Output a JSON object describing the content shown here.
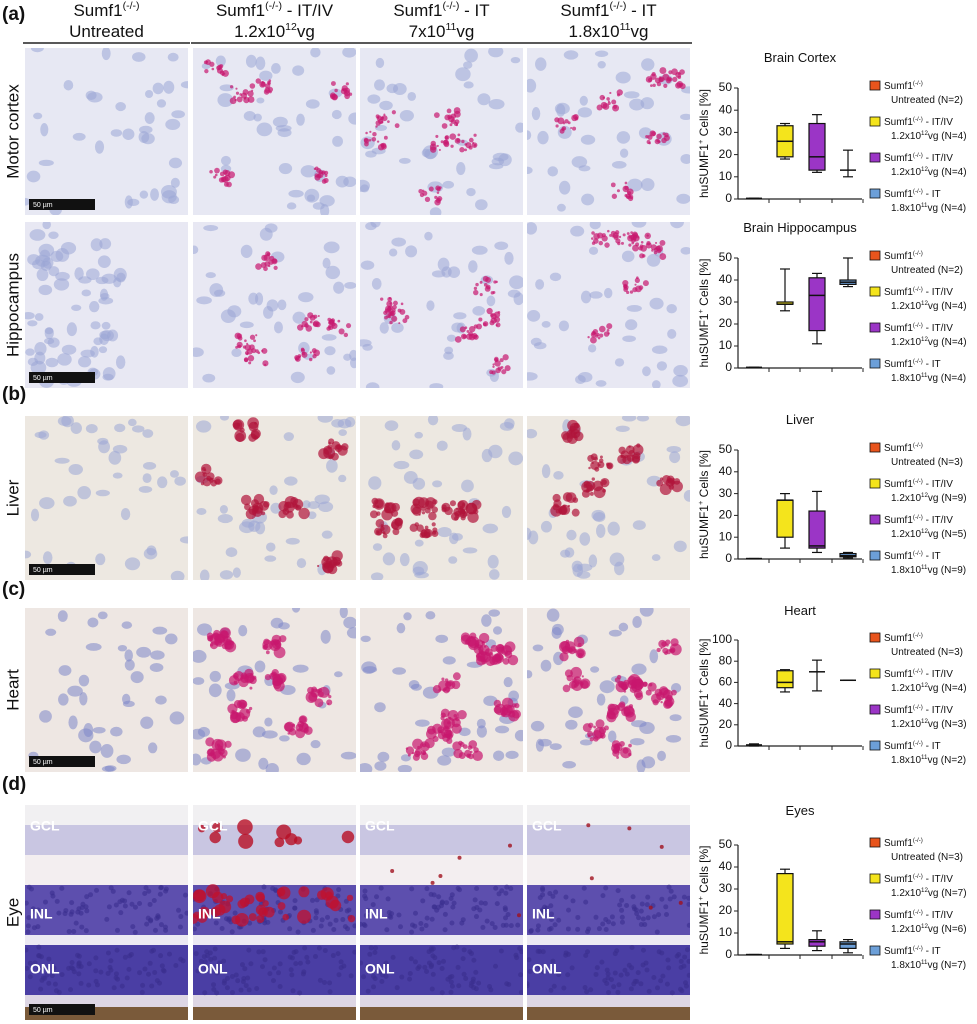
{
  "panels": [
    "(a)",
    "(b)",
    "(c)",
    "(d)"
  ],
  "columns": [
    {
      "title": [
        "Sumf1",
        "(-/-)"
      ],
      "subtitle": [
        "Untreated"
      ]
    },
    {
      "title": [
        "Sumf1",
        "(-/-)",
        " - IT/IV"
      ],
      "subtitle": [
        "1.2x10",
        "12",
        "vg"
      ]
    },
    {
      "title": [
        "Sumf1",
        "(-/-)",
        " - IT"
      ],
      "subtitle": [
        "7x10",
        "11",
        "vg"
      ]
    },
    {
      "title": [
        "Sumf1",
        "(-/-)",
        " - IT"
      ],
      "subtitle": [
        "1.8x10",
        "11",
        "vg"
      ]
    }
  ],
  "rows": [
    "Motor cortex",
    "Hippocampus",
    "Liver",
    "Heart",
    "Eye"
  ],
  "scale_bar": "50 µm",
  "eye_layers": [
    "GCL",
    "INL",
    "ONL"
  ],
  "chart_data": [
    {
      "type": "box",
      "title": "Brain Cortex",
      "y_label": [
        "huSUMF1",
        "+",
        " Cells [%]"
      ],
      "ylim": [
        0,
        50
      ],
      "yticks": [
        0,
        10,
        20,
        30,
        40,
        50
      ],
      "series": [
        {
          "name": [
            "Sumf1",
            "(-/-)"
          ],
          "detail": [
            "Untreated (N=2)"
          ],
          "color": "#e8541c",
          "min": 0.3,
          "q1": 0.3,
          "median": 0.3,
          "q3": 0.3,
          "max": 0.3
        },
        {
          "name": [
            "Sumf1",
            "(-/-)",
            " - IT/IV"
          ],
          "detail": [
            "1.2x10",
            "12",
            "vg (N=4)"
          ],
          "color": "#f4e41c",
          "min": 18,
          "q1": 19,
          "median": 26,
          "q3": 33,
          "max": 34
        },
        {
          "name": [
            "Sumf1",
            "(-/-)",
            " - IT/IV"
          ],
          "detail": [
            "1.2x10",
            "12",
            "vg (N=4)"
          ],
          "color": "#9b35c6",
          "min": 12,
          "q1": 13,
          "median": 19,
          "q3": 34,
          "max": 38
        },
        {
          "name": [
            "Sumf1",
            "(-/-)",
            " - IT"
          ],
          "detail": [
            "1.8x10",
            "11",
            "vg (N=4)"
          ],
          "color": "#6c9fd8",
          "min": 10,
          "q1": 13,
          "median": 13,
          "q3": 13,
          "max": 22
        }
      ]
    },
    {
      "type": "box",
      "title": "Brain Hippocampus",
      "y_label": [
        "huSUMF1",
        "+",
        " Cells [%]"
      ],
      "ylim": [
        0,
        50
      ],
      "yticks": [
        0,
        10,
        20,
        30,
        40,
        50
      ],
      "series": [
        {
          "name": [
            "Sumf1",
            "(-/-)"
          ],
          "detail": [
            "Untreated (N=2)"
          ],
          "color": "#e8541c",
          "min": 0.3,
          "q1": 0.3,
          "median": 0.3,
          "q3": 0.3,
          "max": 0.3
        },
        {
          "name": [
            "Sumf1",
            "(-/-)",
            " - IT/IV"
          ],
          "detail": [
            "1.2x10",
            "12",
            "vg (N=4)"
          ],
          "color": "#f4e41c",
          "min": 26,
          "q1": 29,
          "median": 29,
          "q3": 30,
          "max": 45
        },
        {
          "name": [
            "Sumf1",
            "(-/-)",
            " - IT/IV"
          ],
          "detail": [
            "1.2x10",
            "12",
            "vg (N=4)"
          ],
          "color": "#9b35c6",
          "min": 11,
          "q1": 17,
          "median": 33,
          "q3": 41,
          "max": 43
        },
        {
          "name": [
            "Sumf1",
            "(-/-)",
            " - IT"
          ],
          "detail": [
            "1.8x10",
            "11",
            "vg (N=4)"
          ],
          "color": "#6c9fd8",
          "min": 37,
          "q1": 38,
          "median": 39,
          "q3": 40,
          "max": 50
        }
      ]
    },
    {
      "type": "box",
      "title": "Liver",
      "y_label": [
        "huSUMF1",
        "+",
        " Cells [%]"
      ],
      "ylim": [
        0,
        50
      ],
      "yticks": [
        0,
        10,
        20,
        30,
        40,
        50
      ],
      "series": [
        {
          "name": [
            "Sumf1",
            "(-/-)"
          ],
          "detail": [
            "Untreated (N=3)"
          ],
          "color": "#e8541c",
          "min": 0.2,
          "q1": 0.2,
          "median": 0.2,
          "q3": 0.2,
          "max": 0.2
        },
        {
          "name": [
            "Sumf1",
            "(-/-)",
            " - IT/IV"
          ],
          "detail": [
            "1.2x10",
            "12",
            "vg (N=9)"
          ],
          "color": "#f4e41c",
          "min": 5,
          "q1": 10,
          "median": 27,
          "q3": 27,
          "max": 30
        },
        {
          "name": [
            "Sumf1",
            "(-/-)",
            " - IT/IV"
          ],
          "detail": [
            "1.2x10",
            "12",
            "vg (N=5)"
          ],
          "color": "#9b35c6",
          "min": 3,
          "q1": 5,
          "median": 6,
          "q3": 22,
          "max": 31
        },
        {
          "name": [
            "Sumf1",
            "(-/-)",
            " - IT"
          ],
          "detail": [
            "1.8x10",
            "11",
            "vg (N=9)"
          ],
          "color": "#6c9fd8",
          "min": 0.5,
          "q1": 1,
          "median": 1.5,
          "q3": 2.5,
          "max": 3
        }
      ]
    },
    {
      "type": "box",
      "title": "Heart",
      "y_label": [
        "huSUMF1",
        "+",
        " Cells [%]"
      ],
      "ylim": [
        0,
        100
      ],
      "yticks": [
        0,
        20,
        40,
        60,
        80,
        100
      ],
      "series": [
        {
          "name": [
            "Sumf1",
            "(-/-)"
          ],
          "detail": [
            "Untreated (N=3)"
          ],
          "color": "#e8541c",
          "min": 0,
          "q1": 1,
          "median": 1,
          "q3": 1,
          "max": 2
        },
        {
          "name": [
            "Sumf1",
            "(-/-)",
            " - IT/IV"
          ],
          "detail": [
            "1.2x10",
            "12",
            "vg (N=4)"
          ],
          "color": "#f4e41c",
          "min": 51,
          "q1": 55,
          "median": 60,
          "q3": 71,
          "max": 72
        },
        {
          "name": [
            "Sumf1",
            "(-/-)",
            " - IT/IV"
          ],
          "detail": [
            "1.2x10",
            "12",
            "vg (N=3)"
          ],
          "color": "#9b35c6",
          "min": 52,
          "q1": 70,
          "median": 70,
          "q3": 70,
          "max": 81
        },
        {
          "name": [
            "Sumf1",
            "(-/-)",
            " - IT"
          ],
          "detail": [
            "1.8x10",
            "11",
            "vg (N=2)"
          ],
          "color": "#6c9fd8",
          "min": 62,
          "q1": 62,
          "median": 62,
          "q3": 62,
          "max": 62
        }
      ]
    },
    {
      "type": "box",
      "title": "Eyes",
      "y_label": [
        "huSUMF1",
        "+",
        " Cells [%]"
      ],
      "ylim": [
        0,
        50
      ],
      "yticks": [
        0,
        10,
        20,
        30,
        40,
        50
      ],
      "series": [
        {
          "name": [
            "Sumf1",
            "(-/-)"
          ],
          "detail": [
            "Untreated (N=3)"
          ],
          "color": "#e8541c",
          "min": 0.2,
          "q1": 0.2,
          "median": 0.2,
          "q3": 0.2,
          "max": 0.2
        },
        {
          "name": [
            "Sumf1",
            "(-/-)",
            " - IT/IV"
          ],
          "detail": [
            "1.2x10",
            "12",
            "vg (N=7)"
          ],
          "color": "#f4e41c",
          "min": 3,
          "q1": 5,
          "median": 6,
          "q3": 37,
          "max": 39
        },
        {
          "name": [
            "Sumf1",
            "(-/-)",
            " - IT/IV"
          ],
          "detail": [
            "1.2x10",
            "12",
            "vg (N=6)"
          ],
          "color": "#9b35c6",
          "min": 2,
          "q1": 4,
          "median": 6,
          "q3": 7,
          "max": 11
        },
        {
          "name": [
            "Sumf1",
            "(-/-)",
            " - IT"
          ],
          "detail": [
            "1.8x10",
            "11",
            "vg (N=7)"
          ],
          "color": "#6c9fd8",
          "min": 1,
          "q1": 3,
          "median": 5,
          "q3": 6,
          "max": 7
        }
      ]
    }
  ]
}
